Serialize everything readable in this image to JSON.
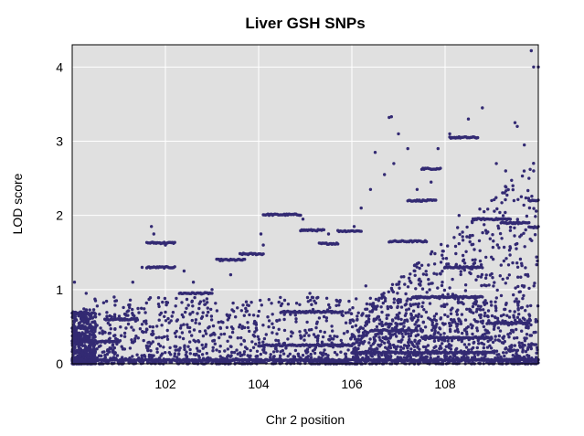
{
  "chart_data": {
    "type": "scatter",
    "title": "Liver GSH SNPs",
    "xlabel": "Chr 2 position",
    "ylabel": "LOD score",
    "xlim": [
      100.0,
      110.0
    ],
    "ylim": [
      0,
      4.3
    ],
    "xticks": [
      "102",
      "104",
      "106",
      "108"
    ],
    "yticks": [
      "0",
      "1",
      "2",
      "3",
      "4"
    ],
    "grid": true,
    "background_color": "#e0e0e0",
    "grid_color": "#ffffff",
    "point_color": "#332a73",
    "segments": [
      {
        "x0": 100.0,
        "x1": 100.5,
        "y": 0.68
      },
      {
        "x0": 100.0,
        "x1": 100.5,
        "y": 0.48
      },
      {
        "x0": 100.0,
        "x1": 101.0,
        "y": 0.3
      },
      {
        "x0": 100.0,
        "x1": 110.0,
        "y": 0.05
      },
      {
        "x0": 100.7,
        "x1": 101.4,
        "y": 0.6
      },
      {
        "x0": 101.6,
        "x1": 102.2,
        "y": 1.63
      },
      {
        "x0": 101.6,
        "x1": 102.2,
        "y": 1.3
      },
      {
        "x0": 102.3,
        "x1": 103.0,
        "y": 0.95
      },
      {
        "x0": 103.1,
        "x1": 103.7,
        "y": 1.4
      },
      {
        "x0": 103.6,
        "x1": 104.1,
        "y": 1.48
      },
      {
        "x0": 104.1,
        "x1": 104.9,
        "y": 2.01
      },
      {
        "x0": 104.9,
        "x1": 105.4,
        "y": 1.8
      },
      {
        "x0": 105.3,
        "x1": 105.7,
        "y": 1.62
      },
      {
        "x0": 105.7,
        "x1": 106.2,
        "y": 1.79
      },
      {
        "x0": 104.5,
        "x1": 105.8,
        "y": 0.7
      },
      {
        "x0": 104.0,
        "x1": 106.0,
        "y": 0.25
      },
      {
        "x0": 107.5,
        "x1": 107.9,
        "y": 2.63
      },
      {
        "x0": 107.2,
        "x1": 107.8,
        "y": 2.2
      },
      {
        "x0": 108.1,
        "x1": 108.7,
        "y": 3.05
      },
      {
        "x0": 108.6,
        "x1": 109.4,
        "y": 1.95
      },
      {
        "x0": 109.2,
        "x1": 109.8,
        "y": 1.9
      },
      {
        "x0": 109.8,
        "x1": 110.0,
        "y": 1.84
      },
      {
        "x0": 109.8,
        "x1": 110.0,
        "y": 2.2
      },
      {
        "x0": 108.0,
        "x1": 108.8,
        "y": 1.3
      },
      {
        "x0": 107.3,
        "x1": 108.8,
        "y": 0.9
      },
      {
        "x0": 106.8,
        "x1": 107.6,
        "y": 1.65
      },
      {
        "x0": 106.4,
        "x1": 107.4,
        "y": 0.45
      },
      {
        "x0": 107.5,
        "x1": 109.0,
        "y": 0.35
      },
      {
        "x0": 108.9,
        "x1": 109.8,
        "y": 0.55
      },
      {
        "x0": 106.0,
        "x1": 109.0,
        "y": 0.15
      }
    ],
    "points": [
      [
        100.05,
        1.1
      ],
      [
        100.3,
        0.95
      ],
      [
        100.5,
        0.85
      ],
      [
        100.9,
        0.9
      ],
      [
        101.3,
        1.1
      ],
      [
        101.5,
        1.3
      ],
      [
        101.7,
        1.85
      ],
      [
        101.75,
        1.75
      ],
      [
        102.0,
        1.6
      ],
      [
        102.4,
        1.25
      ],
      [
        102.6,
        1.1
      ],
      [
        103.0,
        1.0
      ],
      [
        103.4,
        1.2
      ],
      [
        104.1,
        1.6
      ],
      [
        104.05,
        1.75
      ],
      [
        104.95,
        1.95
      ],
      [
        105.5,
        1.75
      ],
      [
        106.05,
        1.85
      ],
      [
        106.2,
        2.1
      ],
      [
        106.4,
        2.35
      ],
      [
        106.5,
        2.85
      ],
      [
        106.7,
        2.55
      ],
      [
        106.8,
        3.32
      ],
      [
        106.85,
        3.33
      ],
      [
        106.9,
        2.7
      ],
      [
        107.0,
        3.1
      ],
      [
        107.2,
        2.9
      ],
      [
        107.4,
        2.35
      ],
      [
        107.7,
        2.45
      ],
      [
        107.85,
        2.9
      ],
      [
        108.1,
        3.1
      ],
      [
        108.5,
        3.3
      ],
      [
        108.8,
        3.45
      ],
      [
        109.1,
        2.7
      ],
      [
        109.3,
        2.6
      ],
      [
        109.5,
        3.25
      ],
      [
        109.55,
        3.2
      ],
      [
        109.7,
        2.95
      ],
      [
        109.8,
        2.5
      ],
      [
        109.9,
        4.0
      ],
      [
        109.85,
        4.22
      ],
      [
        110.0,
        4.0
      ],
      [
        109.9,
        2.6
      ],
      [
        109.0,
        2.2
      ],
      [
        108.3,
        2.0
      ],
      [
        107.6,
        1.2
      ],
      [
        106.3,
        1.05
      ],
      [
        105.1,
        0.95
      ]
    ],
    "noise_seed": 12345
  }
}
